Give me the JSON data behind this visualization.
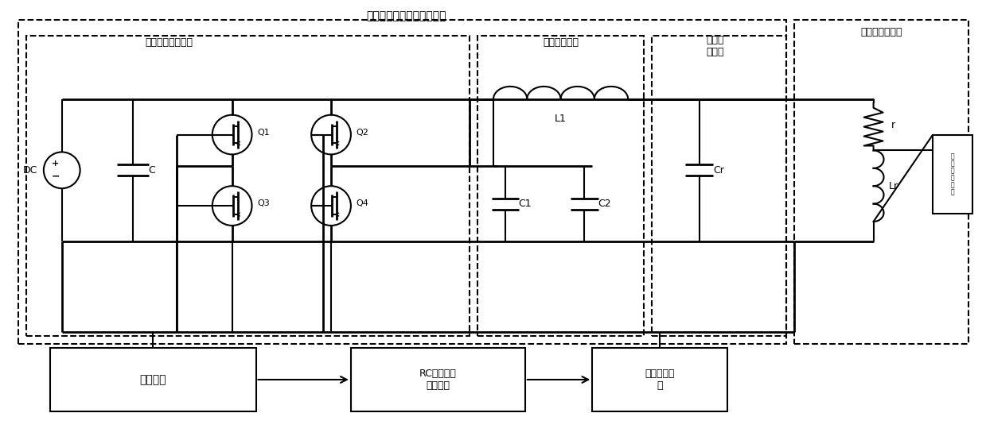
{
  "fig_width": 12.39,
  "fig_height": 5.54,
  "dpi": 100,
  "xmax": 123.9,
  "ymax": 55.4,
  "labels": {
    "hf_output": "高频功率振荡信号输出电路",
    "hf_inverter": "高频逆变驱动电路",
    "impedance": "阻抗匹配网络",
    "static_cap1": "静态匹",
    "static_cap2": "配电容",
    "bias_coil": "带偏置磁场线圈",
    "DC": "DC",
    "C": "C",
    "Q1": "Q1",
    "Q2": "Q2",
    "Q3": "Q3",
    "Q4": "Q4",
    "L1": "L1",
    "C1": "C1",
    "C2": "C2",
    "Cr": "Cr",
    "r": "r",
    "Lr": "Lr",
    "main_ctrl": "主控制器",
    "rc_filter": "RC回波信号\n滤波电路",
    "hv_iso": "高压隔离模\n块",
    "bias_magnet": "偏置磁铁线圈"
  }
}
